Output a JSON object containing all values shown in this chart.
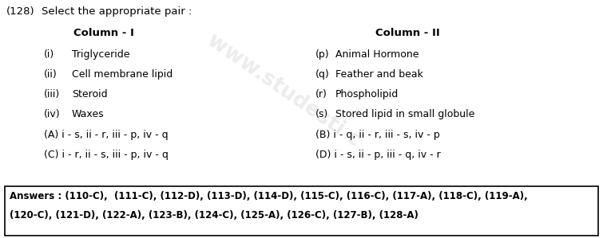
{
  "question_number": "(128)",
  "question_text": "Select the appropriate pair :",
  "col1_header": "Column - I",
  "col2_header": "Column - II",
  "col1_items": [
    [
      "(i)",
      "Triglyceride"
    ],
    [
      "(ii)",
      "Cell membrane lipid"
    ],
    [
      "(iii)",
      "Steroid"
    ],
    [
      "(iv)",
      "Waxes"
    ]
  ],
  "col2_items": [
    [
      "(p)",
      "Animal Hormone"
    ],
    [
      "(q)",
      "Feather and beak"
    ],
    [
      "(r)",
      "Phospholipid"
    ],
    [
      "(s)",
      "Stored lipid in small globule"
    ]
  ],
  "options_left": [
    "(A) i - s, ii - r, iii - p, iv - q",
    "(C) i - r, ii - s, iii - p, iv - q"
  ],
  "options_right": [
    "(B) i - q, ii - r, iii - s, iv - p",
    "(D) i - s, ii - p, iii - q, iv - r"
  ],
  "answers_line1": "Answers : (110-C),  (111-C), (112-D), (113-D), (114-D), (115-C), (116-C), (117-A), (118-C), (119-A),",
  "answers_line2": "(120-C), (121-D), (122-A), (123-B), (124-C), (125-A), (126-C), (127-B), (128-A)",
  "bg_color": "#ffffff",
  "text_color": "#000000",
  "fig_width": 7.55,
  "fig_height": 2.99,
  "dpi": 100
}
